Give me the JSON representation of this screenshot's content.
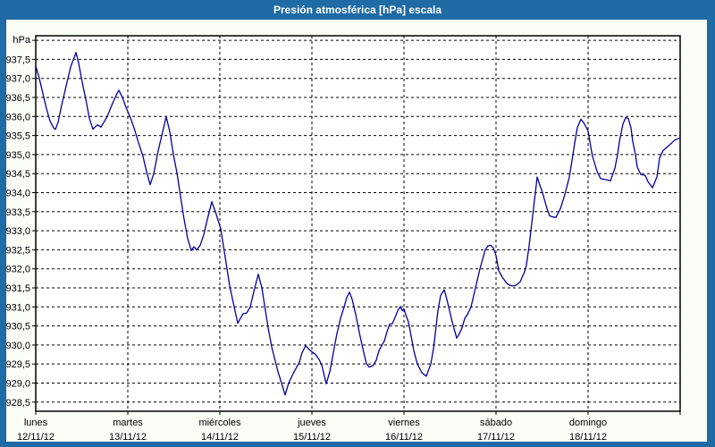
{
  "window": {
    "title": "Presión atmosférica [hPa] escala"
  },
  "colors": {
    "accent_blue": "#1e6ba6",
    "line": "#0000a0",
    "plot_bg": "#ffffff",
    "panel_bg": "#fbfdf7",
    "grid": "#000000",
    "text": "#000000"
  },
  "chart_data": {
    "type": "line",
    "title": "Presión atmosférica [hPa] escala",
    "unit_label": "hPa",
    "ylabel": "hPa",
    "grid": "dashed",
    "legend": "none",
    "ylim": [
      928.26,
      938.12
    ],
    "y_tick_step": 0.5,
    "y_grid_values": [
      938.0,
      937.5,
      937.0,
      936.5,
      936.0,
      935.5,
      935.0,
      934.5,
      934.0,
      933.5,
      933.0,
      932.5,
      932.0,
      931.5,
      931.0,
      930.5,
      930.0,
      929.5,
      929.0,
      928.5
    ],
    "y_tick_values": [
      937.5,
      937.0,
      936.5,
      936.0,
      935.5,
      935.0,
      934.5,
      934.0,
      933.5,
      933.0,
      932.5,
      932.0,
      931.5,
      931.0,
      930.5,
      930.0,
      929.5,
      929.0,
      928.5
    ],
    "y_tick_labels": [
      "937,5",
      "937,0",
      "936,5",
      "936,0",
      "935,5",
      "935,0",
      "934,5",
      "934,0",
      "933,5",
      "933,0",
      "932,5",
      "932,0",
      "931,5",
      "931,0",
      "930,5",
      "930,0",
      "929,5",
      "929,0",
      "928,5"
    ],
    "x_axis": {
      "unit": "days",
      "days": [
        {
          "name": "lunes",
          "date": "12/11/12"
        },
        {
          "name": "martes",
          "date": "13/11/12"
        },
        {
          "name": "miércoles",
          "date": "14/11/12"
        },
        {
          "name": "jueves",
          "date": "15/11/12"
        },
        {
          "name": "viernes",
          "date": "16/11/12"
        },
        {
          "name": "sábado",
          "date": "17/11/12"
        },
        {
          "name": "domingo",
          "date": "18/11/12"
        }
      ]
    },
    "series": [
      {
        "name": "Presión atmosférica",
        "color": "#0000a0",
        "x_unit": "day_fraction_from_monday",
        "y_unit": "hPa",
        "points": [
          [
            0,
            937.32
          ],
          [
            0.039,
            937.0
          ],
          [
            0.078,
            936.6
          ],
          [
            0.117,
            936.2
          ],
          [
            0.155,
            935.88
          ],
          [
            0.194,
            935.7
          ],
          [
            0.214,
            935.66
          ],
          [
            0.243,
            935.85
          ],
          [
            0.282,
            936.3
          ],
          [
            0.33,
            936.8
          ],
          [
            0.379,
            937.3
          ],
          [
            0.417,
            937.55
          ],
          [
            0.437,
            937.68
          ],
          [
            0.466,
            937.4
          ],
          [
            0.505,
            936.9
          ],
          [
            0.544,
            936.45
          ],
          [
            0.583,
            935.95
          ],
          [
            0.621,
            935.67
          ],
          [
            0.67,
            935.78
          ],
          [
            0.709,
            935.72
          ],
          [
            0.777,
            936.0
          ],
          [
            0.835,
            936.35
          ],
          [
            0.883,
            936.6
          ],
          [
            0.903,
            936.69
          ],
          [
            0.942,
            936.5
          ],
          [
            0.971,
            936.3
          ],
          [
            1.0,
            936.13
          ],
          [
            1.039,
            935.9
          ],
          [
            1.068,
            935.7
          ],
          [
            1.117,
            935.3
          ],
          [
            1.165,
            934.95
          ],
          [
            1.204,
            934.55
          ],
          [
            1.243,
            934.21
          ],
          [
            1.282,
            934.5
          ],
          [
            1.33,
            935.1
          ],
          [
            1.379,
            935.6
          ],
          [
            1.417,
            935.99
          ],
          [
            1.456,
            935.6
          ],
          [
            1.495,
            935.0
          ],
          [
            1.534,
            934.52
          ],
          [
            1.573,
            933.9
          ],
          [
            1.612,
            933.3
          ],
          [
            1.65,
            932.8
          ],
          [
            1.689,
            932.48
          ],
          [
            1.718,
            932.58
          ],
          [
            1.748,
            932.5
          ],
          [
            1.786,
            932.62
          ],
          [
            1.825,
            932.9
          ],
          [
            1.864,
            933.3
          ],
          [
            1.913,
            933.76
          ],
          [
            1.951,
            933.5
          ],
          [
            2.01,
            933.05
          ],
          [
            2.058,
            932.3
          ],
          [
            2.107,
            931.55
          ],
          [
            2.155,
            931.0
          ],
          [
            2.194,
            930.57
          ],
          [
            2.223,
            930.7
          ],
          [
            2.252,
            930.82
          ],
          [
            2.291,
            930.84
          ],
          [
            2.33,
            931.0
          ],
          [
            2.369,
            931.4
          ],
          [
            2.417,
            931.86
          ],
          [
            2.456,
            931.5
          ],
          [
            2.495,
            930.9
          ],
          [
            2.524,
            930.45
          ],
          [
            2.563,
            929.95
          ],
          [
            2.592,
            929.67
          ],
          [
            2.631,
            929.3
          ],
          [
            2.67,
            929.0
          ],
          [
            2.709,
            928.69
          ],
          [
            2.748,
            929.0
          ],
          [
            2.786,
            929.2
          ],
          [
            2.825,
            929.38
          ],
          [
            2.864,
            929.55
          ],
          [
            2.893,
            929.8
          ],
          [
            2.932,
            929.98
          ],
          [
            2.971,
            929.88
          ],
          [
            3.0,
            929.82
          ],
          [
            3.039,
            929.75
          ],
          [
            3.078,
            929.62
          ],
          [
            3.107,
            929.47
          ],
          [
            3.155,
            928.98
          ],
          [
            3.194,
            929.3
          ],
          [
            3.233,
            929.8
          ],
          [
            3.272,
            930.3
          ],
          [
            3.311,
            930.7
          ],
          [
            3.35,
            931.0
          ],
          [
            3.379,
            931.25
          ],
          [
            3.408,
            931.39
          ],
          [
            3.437,
            931.2
          ],
          [
            3.476,
            930.8
          ],
          [
            3.524,
            930.22
          ],
          [
            3.563,
            929.8
          ],
          [
            3.592,
            929.51
          ],
          [
            3.621,
            929.42
          ],
          [
            3.66,
            929.45
          ],
          [
            3.699,
            929.6
          ],
          [
            3.728,
            929.85
          ],
          [
            3.757,
            929.98
          ],
          [
            3.786,
            930.1
          ],
          [
            3.816,
            930.35
          ],
          [
            3.845,
            930.55
          ],
          [
            3.874,
            930.56
          ],
          [
            3.903,
            930.72
          ],
          [
            3.932,
            930.9
          ],
          [
            3.961,
            931.01
          ],
          [
            3.981,
            930.9
          ],
          [
            4.0,
            930.95
          ],
          [
            4.019,
            930.8
          ],
          [
            4.049,
            930.6
          ],
          [
            4.078,
            930.24
          ],
          [
            4.107,
            929.85
          ],
          [
            4.146,
            929.5
          ],
          [
            4.194,
            929.27
          ],
          [
            4.243,
            929.18
          ],
          [
            4.291,
            929.5
          ],
          [
            4.32,
            929.9
          ],
          [
            4.35,
            930.5
          ],
          [
            4.369,
            930.9
          ],
          [
            4.398,
            931.3
          ],
          [
            4.437,
            931.45
          ],
          [
            4.466,
            931.2
          ],
          [
            4.495,
            930.9
          ],
          [
            4.524,
            930.6
          ],
          [
            4.573,
            930.18
          ],
          [
            4.602,
            930.3
          ],
          [
            4.631,
            930.45
          ],
          [
            4.66,
            930.7
          ],
          [
            4.689,
            930.8
          ],
          [
            4.728,
            931.0
          ],
          [
            4.777,
            931.5
          ],
          [
            4.825,
            932.0
          ],
          [
            4.854,
            932.25
          ],
          [
            4.883,
            932.5
          ],
          [
            4.913,
            932.6
          ],
          [
            4.942,
            932.62
          ],
          [
            4.971,
            932.55
          ],
          [
            5.0,
            932.35
          ],
          [
            5.029,
            931.95
          ],
          [
            5.068,
            931.78
          ],
          [
            5.117,
            931.62
          ],
          [
            5.155,
            931.56
          ],
          [
            5.194,
            931.55
          ],
          [
            5.223,
            931.58
          ],
          [
            5.262,
            931.66
          ],
          [
            5.311,
            931.93
          ],
          [
            5.33,
            932.1
          ],
          [
            5.359,
            932.6
          ],
          [
            5.388,
            933.2
          ],
          [
            5.417,
            933.8
          ],
          [
            5.437,
            934.2
          ],
          [
            5.447,
            934.41
          ],
          [
            5.476,
            934.2
          ],
          [
            5.505,
            934.0
          ],
          [
            5.553,
            933.58
          ],
          [
            5.583,
            933.39
          ],
          [
            5.621,
            933.36
          ],
          [
            5.65,
            933.35
          ],
          [
            5.699,
            933.58
          ],
          [
            5.748,
            933.95
          ],
          [
            5.796,
            934.41
          ],
          [
            5.825,
            934.84
          ],
          [
            5.854,
            935.3
          ],
          [
            5.883,
            935.7
          ],
          [
            5.922,
            935.93
          ],
          [
            5.961,
            935.8
          ],
          [
            6.0,
            935.62
          ],
          [
            6.029,
            935.2
          ],
          [
            6.049,
            934.95
          ],
          [
            6.097,
            934.56
          ],
          [
            6.136,
            934.37
          ],
          [
            6.175,
            934.35
          ],
          [
            6.214,
            934.33
          ],
          [
            6.243,
            934.31
          ],
          [
            6.291,
            934.64
          ],
          [
            6.32,
            935.0
          ],
          [
            6.34,
            935.34
          ],
          [
            6.379,
            935.8
          ],
          [
            6.408,
            935.97
          ],
          [
            6.437,
            935.95
          ],
          [
            6.466,
            935.7
          ],
          [
            6.485,
            935.34
          ],
          [
            6.515,
            935.0
          ],
          [
            6.534,
            934.67
          ],
          [
            6.573,
            934.48
          ],
          [
            6.621,
            934.45
          ],
          [
            6.65,
            934.29
          ],
          [
            6.699,
            934.13
          ],
          [
            6.748,
            934.41
          ],
          [
            6.777,
            934.91
          ],
          [
            6.816,
            935.11
          ],
          [
            6.845,
            935.17
          ],
          [
            6.893,
            935.27
          ],
          [
            6.942,
            935.38
          ],
          [
            7.0,
            935.44
          ]
        ]
      }
    ]
  }
}
